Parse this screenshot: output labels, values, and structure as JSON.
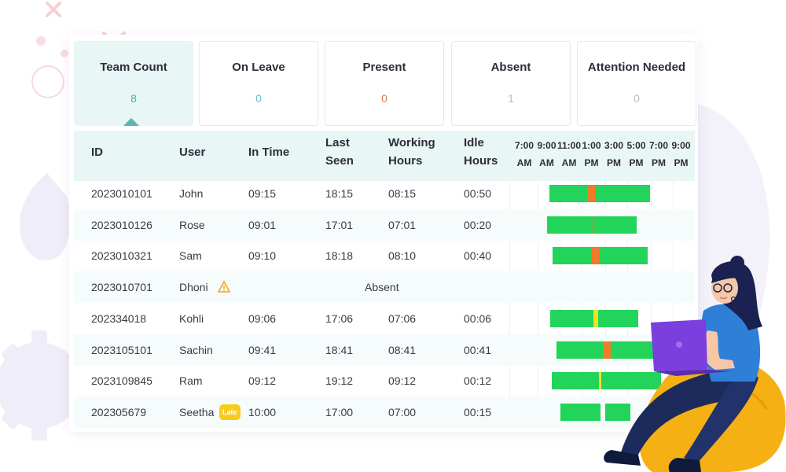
{
  "stats": [
    {
      "label": "Team Count",
      "value": "8",
      "color": "#46b3ad"
    },
    {
      "label": "On Leave",
      "value": "0",
      "color": "#6bb8d8"
    },
    {
      "label": "Present",
      "value": "0",
      "color": "#e07d3c"
    },
    {
      "label": "Absent",
      "value": "1",
      "color": "#b8bcc4"
    },
    {
      "label": "Attention Needed",
      "value": "0",
      "color": "#b8bcc4"
    }
  ],
  "table": {
    "headers": {
      "id": "ID",
      "user": "User",
      "in_time": "In Time",
      "last_seen_1": "Last",
      "last_seen_2": "Seen",
      "working_1": "Working",
      "working_2": "Hours",
      "idle_1": "Idle",
      "idle_2": "Hours"
    },
    "timeline_ticks": [
      {
        "time": "7:00",
        "ampm": "AM"
      },
      {
        "time": "9:00",
        "ampm": "AM"
      },
      {
        "time": "11:00",
        "ampm": "AM"
      },
      {
        "time": "1:00",
        "ampm": "PM"
      },
      {
        "time": "3:00",
        "ampm": "PM"
      },
      {
        "time": "5:00",
        "ampm": "PM"
      },
      {
        "time": "7:00",
        "ampm": "PM"
      },
      {
        "time": "9:00",
        "ampm": "PM"
      }
    ],
    "rows": [
      {
        "id": "2023010101",
        "user": "John",
        "in_time": "09:15",
        "last_seen": "18:15",
        "working": "08:15",
        "idle": "00:50",
        "segments": [
          {
            "s": 9.25,
            "e": 12.6,
            "c": "#22d45a"
          },
          {
            "s": 12.6,
            "e": 13.35,
            "c": "#f07c2a"
          },
          {
            "s": 13.35,
            "e": 18.25,
            "c": "#22d45a"
          }
        ]
      },
      {
        "id": "2023010126",
        "user": "Rose",
        "in_time": "09:01",
        "last_seen": "17:01",
        "working": "07:01",
        "idle": "00:20",
        "segments": [
          {
            "s": 9.0,
            "e": 13.1,
            "c": "#22d45a"
          },
          {
            "s": 13.1,
            "e": 13.25,
            "c": "#f07c2a"
          },
          {
            "s": 13.25,
            "e": 17.0,
            "c": "#22d45a"
          }
        ]
      },
      {
        "id": "2023010321",
        "user": "Sam",
        "in_time": "09:10",
        "last_seen": "18:18",
        "working": "08:10",
        "idle": "00:40",
        "segments": [
          {
            "s": 9.5,
            "e": 13.0,
            "c": "#22d45a"
          },
          {
            "s": 13.0,
            "e": 13.65,
            "c": "#f07c2a"
          },
          {
            "s": 13.65,
            "e": 18.0,
            "c": "#22d45a"
          }
        ]
      },
      {
        "id": "2023010701",
        "user": "Dhoni",
        "status": "Absent",
        "warning": true,
        "segments": []
      },
      {
        "id": "202334018",
        "user": "Kohli",
        "in_time": "09:06",
        "last_seen": "17:06",
        "working": "07:06",
        "idle": "00:06",
        "segments": [
          {
            "s": 9.3,
            "e": 13.2,
            "c": "#22d45a"
          },
          {
            "s": 13.2,
            "e": 13.6,
            "c": "#f2e02a"
          },
          {
            "s": 13.6,
            "e": 17.2,
            "c": "#22d45a"
          }
        ]
      },
      {
        "id": "2023105101",
        "user": "Sachin",
        "in_time": "09:41",
        "last_seen": "18:41",
        "working": "08:41",
        "idle": "00:41",
        "segments": [
          {
            "s": 9.9,
            "e": 14.0,
            "c": "#22d45a"
          },
          {
            "s": 14.0,
            "e": 14.7,
            "c": "#f07c2a"
          },
          {
            "s": 14.7,
            "e": 19.0,
            "c": "#22d45a"
          }
        ]
      },
      {
        "id": "2023109845",
        "user": "Ram",
        "in_time": "09:12",
        "last_seen": "19:12",
        "working": "09:12",
        "idle": "00:12",
        "segments": [
          {
            "s": 9.45,
            "e": 13.65,
            "c": "#22d45a"
          },
          {
            "s": 13.65,
            "e": 13.9,
            "c": "#f2e02a"
          },
          {
            "s": 13.9,
            "e": 19.2,
            "c": "#22d45a"
          }
        ]
      },
      {
        "id": "202305679",
        "user": "Seetha",
        "badge": "Late",
        "in_time": "10:00",
        "last_seen": "17:00",
        "working": "07:00",
        "idle": "00:15",
        "segments": [
          {
            "s": 10.2,
            "e": 13.8,
            "c": "#22d45a"
          },
          {
            "s": 14.2,
            "e": 16.5,
            "c": "#22d45a"
          }
        ]
      }
    ]
  }
}
